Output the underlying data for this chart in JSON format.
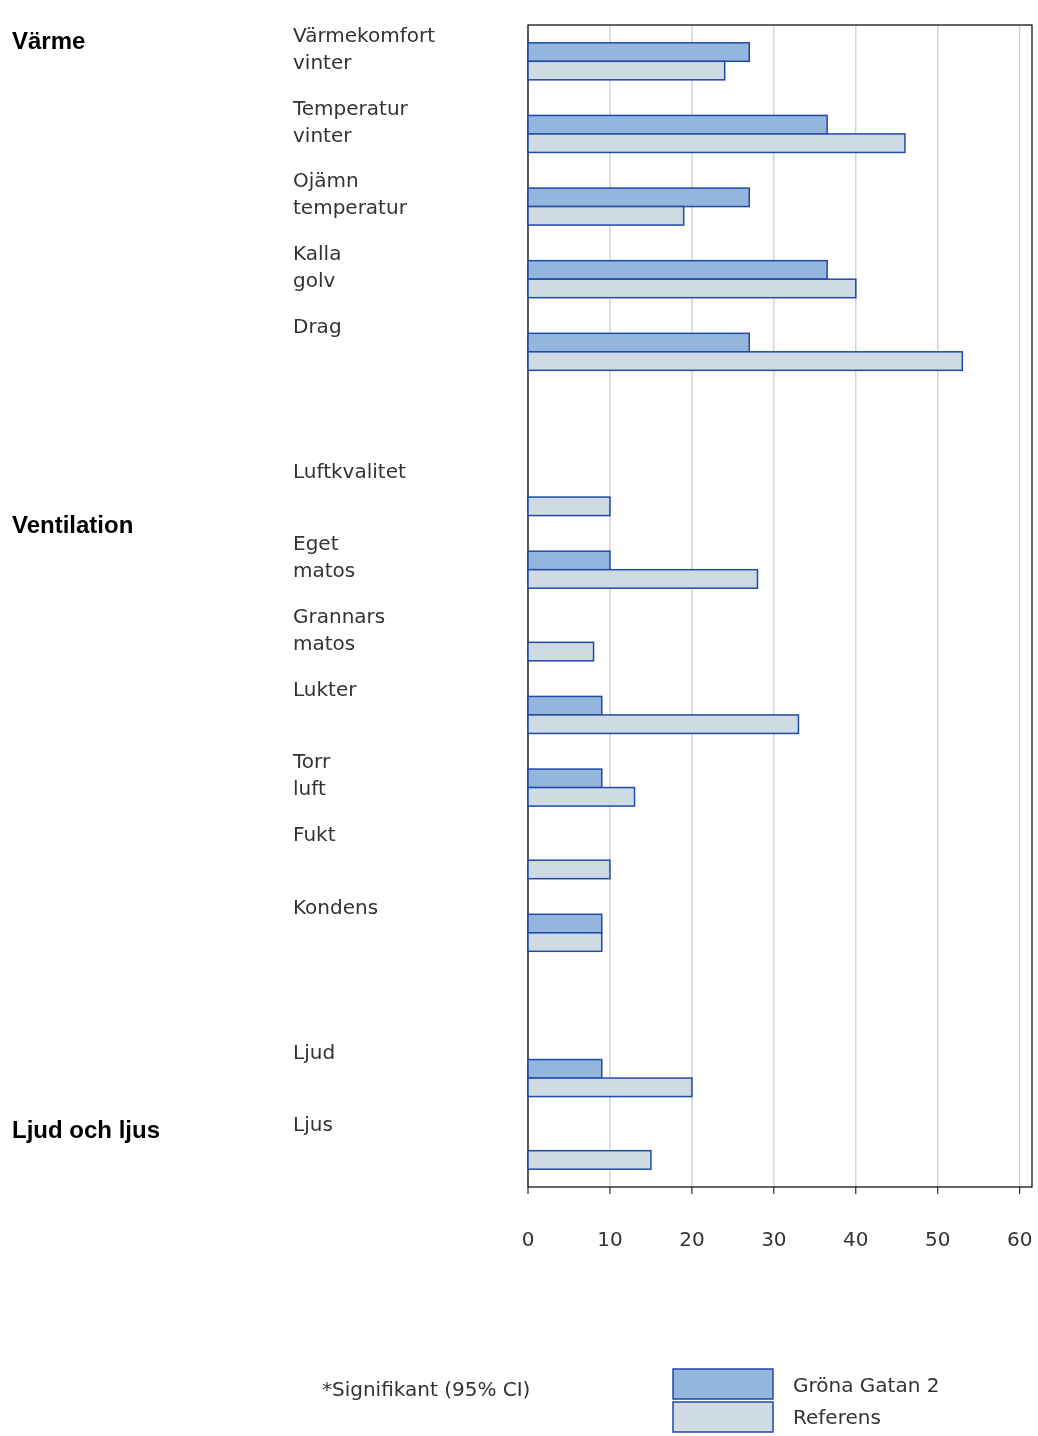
{
  "chart_data": {
    "type": "bar",
    "orientation": "horizontal",
    "categories": [
      "Värmekomfort vinter",
      "Temperatur vinter",
      "Ojämn temperatur",
      "Kalla golv",
      "Drag",
      null,
      "Luftkvalitet",
      "Eget matos",
      "Grannars matos",
      "Lukter",
      "Torr luft",
      "Fukt",
      "Kondens",
      null,
      "Ljud",
      "Ljus"
    ],
    "series": [
      {
        "name": "Gröna Gatan 2",
        "color": "#94b6dc",
        "values": [
          27,
          36.5,
          27,
          36.5,
          27,
          null,
          null,
          10,
          null,
          9,
          9,
          null,
          9,
          null,
          9,
          null
        ]
      },
      {
        "name": "Referens",
        "color": "#cfdbe3",
        "values": [
          24,
          46,
          19,
          40,
          53,
          null,
          10,
          28,
          8,
          33,
          13,
          10,
          9,
          null,
          20,
          15
        ]
      }
    ],
    "xlim": [
      0,
      61.5
    ],
    "xticks": [
      0,
      10,
      20,
      30,
      40,
      50,
      60
    ],
    "grid": "x",
    "legend": "bottom",
    "annotations": [
      "Värme",
      "Ventilation",
      "Ljud och ljus",
      "*Signifikant (95% CI)"
    ]
  }
}
